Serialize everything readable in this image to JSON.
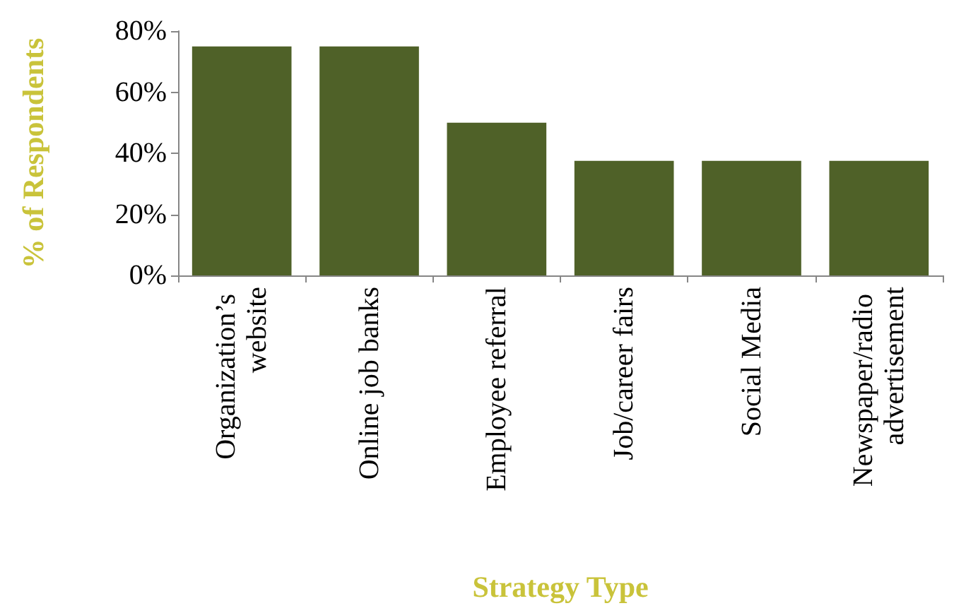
{
  "chart_data": {
    "type": "bar",
    "xlabel": "Strategy Type",
    "ylabel": "% of Respondents",
    "categories": [
      "Organization’s website",
      "Online job banks",
      "Employee referral",
      "Job/career fairs",
      "Social Media",
      "Newspaper/radio advertisement"
    ],
    "values": [
      75,
      75,
      50,
      37.5,
      37.5,
      37.5
    ],
    "color": "#4f6128",
    "ylim": [
      0,
      80
    ],
    "yticks": [
      {
        "value": 0,
        "label": "0%"
      },
      {
        "value": 20,
        "label": "20%"
      },
      {
        "value": 40,
        "label": "40%"
      },
      {
        "value": 60,
        "label": "60%"
      },
      {
        "value": 80,
        "label": "80%"
      }
    ],
    "grid": false
  }
}
